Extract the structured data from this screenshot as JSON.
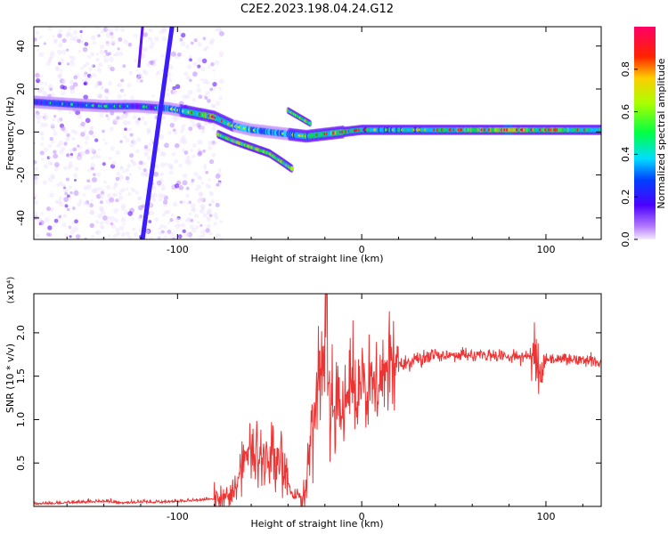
{
  "page": {
    "title": "C2E2.2023.198.04.24.G12"
  },
  "chart_data": [
    {
      "type": "heatmap",
      "title": "C2E2.2023.198.04.24.G12",
      "xlabel": "Height of straight line (km)",
      "ylabel": "Frequency (Hz)",
      "xlim": [
        -178,
        130
      ],
      "ylim": [
        -50,
        49
      ],
      "xticks": [
        -100,
        0,
        100
      ],
      "xtick_labels": [
        "-100",
        "0",
        "100"
      ],
      "yticks": [
        -40,
        -20,
        0,
        20,
        40
      ],
      "ytick_labels": [
        "-40",
        "-20",
        "0",
        "20",
        "40"
      ],
      "features": {
        "noise_region_x": [
          -178,
          -76
        ],
        "diagonal_streak": {
          "x_start": -119,
          "y_start": -50,
          "x_end": -103,
          "y_end": 49
        },
        "band_ridge": {
          "x": [
            -178,
            -160,
            -140,
            -122,
            -105,
            -92,
            -80,
            -70,
            -60,
            -50,
            -40,
            -30,
            -20,
            -10,
            0,
            20,
            50,
            80,
            100,
            130
          ],
          "y": [
            14,
            13,
            12,
            12,
            11,
            9,
            7,
            3,
            1,
            0,
            -1,
            -2,
            -1,
            0,
            1,
            1,
            1,
            1,
            1,
            1
          ],
          "amplitude": [
            0.4,
            0.45,
            0.42,
            0.35,
            0.5,
            0.7,
            0.85,
            0.6,
            0.55,
            0.5,
            0.6,
            0.65,
            0.75,
            0.8,
            0.7,
            0.6,
            0.75,
            0.95,
            0.8,
            0.7
          ]
        },
        "lower_branch": {
          "x": [
            -78,
            -70,
            -60,
            -50,
            -43,
            -38
          ],
          "y": [
            -1,
            -4,
            -7,
            -10,
            -14,
            -17
          ]
        },
        "upper_branch": {
          "x": [
            -40,
            -36,
            -32,
            -28
          ],
          "y": [
            10,
            8,
            6,
            4
          ]
        }
      },
      "colorbar": {
        "label": "Normalized spectral amplitude",
        "range": [
          0,
          1
        ],
        "ticks": [
          0.0,
          0.2,
          0.4,
          0.6,
          0.8
        ],
        "tick_labels": [
          "0.0",
          "0.2",
          "0.4",
          "0.6",
          "0.8"
        ],
        "colors": [
          "#e6d8ff",
          "#8a2be2",
          "#0000ff",
          "#00e5ff",
          "#00ff00",
          "#ffff00",
          "#ff0000",
          "#ff0066"
        ]
      }
    },
    {
      "type": "line",
      "xlabel": "Height of straight line (km)",
      "ylabel": "SNR (10 * v/v)",
      "multiplier": "(x10⁴)",
      "xlim": [
        -178,
        130
      ],
      "ylim": [
        0.0,
        2.45
      ],
      "xticks": [
        -100,
        0,
        100
      ],
      "xtick_labels": [
        "-100",
        "0",
        "100"
      ],
      "yticks": [
        0.5,
        1.0,
        1.5,
        2.0
      ],
      "ytick_labels": [
        "0.5",
        "1.0",
        "1.5",
        "2.0"
      ],
      "color": "#ee3333",
      "series": [
        {
          "name": "SNR",
          "x": [
            -178,
            -165,
            -150,
            -140,
            -130,
            -120,
            -110,
            -100,
            -90,
            -80,
            -75,
            -70,
            -66,
            -62,
            -58,
            -54,
            -50,
            -46,
            -42,
            -40,
            -38,
            -35,
            -32,
            -30,
            -28,
            -26,
            -24,
            -22,
            -20,
            -18,
            -16,
            -14,
            -12,
            -10,
            -8,
            -6,
            -4,
            -2,
            0,
            5,
            10,
            15,
            20,
            25,
            30,
            40,
            50,
            60,
            70,
            80,
            90,
            95,
            97,
            100,
            110,
            120,
            130
          ],
          "y": [
            0.02,
            0.03,
            0.04,
            0.05,
            0.03,
            0.04,
            0.04,
            0.05,
            0.06,
            0.08,
            0.1,
            0.18,
            0.35,
            0.55,
            0.6,
            0.55,
            0.65,
            0.6,
            0.45,
            0.25,
            0.1,
            0.06,
            0.1,
            0.25,
            0.6,
            1.0,
            1.3,
            1.45,
            2.0,
            1.4,
            1.25,
            1.2,
            1.35,
            1.3,
            1.35,
            1.4,
            1.3,
            1.3,
            1.35,
            1.3,
            1.45,
            1.55,
            1.62,
            1.68,
            1.7,
            1.73,
            1.75,
            1.74,
            1.74,
            1.73,
            1.72,
            1.78,
            1.5,
            1.7,
            1.7,
            1.68,
            1.67
          ]
        }
      ]
    }
  ]
}
